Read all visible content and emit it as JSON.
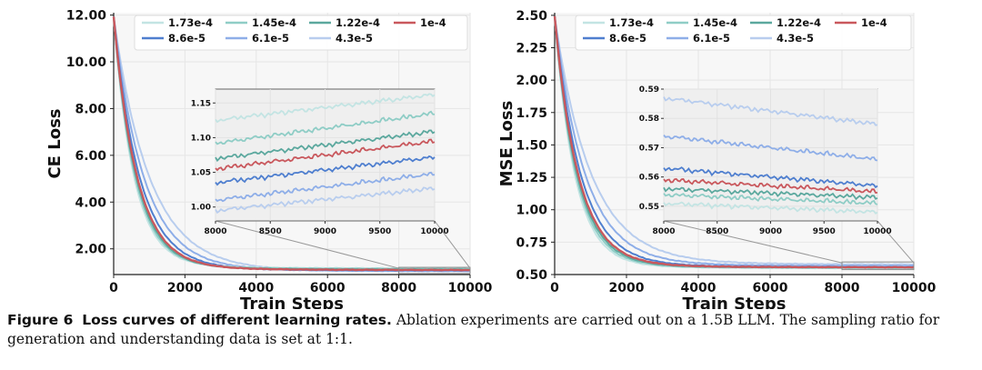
{
  "legend_order": [
    "1.73e-4",
    "1.45e-4",
    "1.22e-4",
    "1e-4",
    "8.6e-5",
    "6.1e-5",
    "4.3e-5"
  ],
  "colors": {
    "1.73e-4": "#c3e4e3",
    "1.45e-4": "#8fcdc6",
    "1.22e-4": "#5ba89e",
    "1e-4": "#c9585d",
    "8.6e-5": "#4f7fcf",
    "6.1e-5": "#8eaee8",
    "4.3e-5": "#b8cdee"
  },
  "chart_data": [
    {
      "type": "line",
      "xlabel": "Train Steps",
      "ylabel": "CE Loss",
      "xlim": [
        0,
        10000
      ],
      "ylim": [
        0.9,
        12.1
      ],
      "xticks": [
        0,
        2000,
        4000,
        6000,
        8000,
        10000
      ],
      "xtick_labels": [
        "0",
        "2000",
        "4000",
        "6000",
        "8000",
        "10000"
      ],
      "yticks": [
        2,
        4,
        6,
        8,
        10,
        12
      ],
      "ytick_labels": [
        "2.00",
        "4.00",
        "6.00",
        "8.00",
        "10.00",
        "12.00"
      ],
      "legend": [
        "1.73e-4",
        "1.45e-4",
        "1.22e-4",
        "1e-4",
        "8.6e-5",
        "6.1e-5",
        "4.3e-5"
      ],
      "start_value": 11.8,
      "series": [
        {
          "name": "1.73e-4",
          "final_value": 1.16
        },
        {
          "name": "1.45e-4",
          "final_value": 1.14
        },
        {
          "name": "1.22e-4",
          "final_value": 1.11
        },
        {
          "name": "1e-4",
          "final_value": 1.09
        },
        {
          "name": "8.6e-5",
          "final_value": 1.07
        },
        {
          "name": "6.1e-5",
          "final_value": 1.05
        },
        {
          "name": "4.3e-5",
          "final_value": 1.03
        }
      ],
      "inset": {
        "xlim": [
          8000,
          10000
        ],
        "ylim": [
          0.98,
          1.17
        ],
        "xticks": [
          8000,
          8500,
          9000,
          9500,
          10000
        ],
        "xtick_labels": [
          "8000",
          "8500",
          "9000",
          "9500",
          "10000"
        ],
        "yticks": [
          1.0,
          1.05,
          1.1,
          1.15
        ],
        "ytick_labels": [
          "1.00",
          "1.05",
          "1.10",
          "1.15"
        ],
        "series": [
          {
            "name": "1.73e-4",
            "start": 1.125,
            "end": 1.162
          },
          {
            "name": "1.45e-4",
            "start": 1.092,
            "end": 1.135
          },
          {
            "name": "1.22e-4",
            "start": 1.07,
            "end": 1.109
          },
          {
            "name": "1e-4",
            "start": 1.055,
            "end": 1.095
          },
          {
            "name": "8.6e-5",
            "start": 1.035,
            "end": 1.072
          },
          {
            "name": "6.1e-5",
            "start": 1.01,
            "end": 1.048
          },
          {
            "name": "4.3e-5",
            "start": 0.995,
            "end": 1.027
          }
        ]
      }
    },
    {
      "type": "line",
      "xlabel": "Train Steps",
      "ylabel": "MSE Loss",
      "xlim": [
        0,
        10000
      ],
      "ylim": [
        0.5,
        2.52
      ],
      "xticks": [
        0,
        2000,
        4000,
        6000,
        8000,
        10000
      ],
      "xtick_labels": [
        "0",
        "2000",
        "4000",
        "6000",
        "8000",
        "10000"
      ],
      "yticks": [
        0.5,
        0.75,
        1.0,
        1.25,
        1.5,
        1.75,
        2.0,
        2.25,
        2.5
      ],
      "ytick_labels": [
        "0.50",
        "0.75",
        "1.00",
        "1.25",
        "1.50",
        "1.75",
        "2.00",
        "2.25",
        "2.50"
      ],
      "legend": [
        "1.73e-4",
        "1.45e-4",
        "1.22e-4",
        "1e-4",
        "8.6e-5",
        "6.1e-5",
        "4.3e-5"
      ],
      "start_value": 2.47,
      "series": [
        {
          "name": "1.73e-4",
          "final_value": 0.548
        },
        {
          "name": "1.45e-4",
          "final_value": 0.551
        },
        {
          "name": "1.22e-4",
          "final_value": 0.553
        },
        {
          "name": "1e-4",
          "final_value": 0.555
        },
        {
          "name": "8.6e-5",
          "final_value": 0.557
        },
        {
          "name": "6.1e-5",
          "final_value": 0.566
        },
        {
          "name": "4.3e-5",
          "final_value": 0.578
        }
      ],
      "inset": {
        "xlim": [
          8000,
          10000
        ],
        "ylim": [
          0.545,
          0.59
        ],
        "xticks": [
          8000,
          8500,
          9000,
          9500,
          10000
        ],
        "xtick_labels": [
          "8000",
          "8500",
          "9000",
          "9500",
          "10000"
        ],
        "yticks": [
          0.55,
          0.56,
          0.57,
          0.58,
          0.59
        ],
        "ytick_labels": [
          "0.55",
          "0.56",
          "0.57",
          "0.58",
          "0.59"
        ],
        "series": [
          {
            "name": "1.73e-4",
            "start": 0.551,
            "end": 0.548
          },
          {
            "name": "1.45e-4",
            "start": 0.554,
            "end": 0.551
          },
          {
            "name": "1.22e-4",
            "start": 0.556,
            "end": 0.553
          },
          {
            "name": "1e-4",
            "start": 0.559,
            "end": 0.555
          },
          {
            "name": "8.6e-5",
            "start": 0.563,
            "end": 0.557
          },
          {
            "name": "6.1e-5",
            "start": 0.574,
            "end": 0.566
          },
          {
            "name": "4.3e-5",
            "start": 0.587,
            "end": 0.578
          }
        ]
      }
    }
  ],
  "caption": {
    "label": "Figure 6",
    "title": "Loss curves of different learning rates.",
    "text": "Ablation experiments are carried out on a 1.5B LLM. The sampling ratio for generation and understanding data is set at 1:1."
  }
}
